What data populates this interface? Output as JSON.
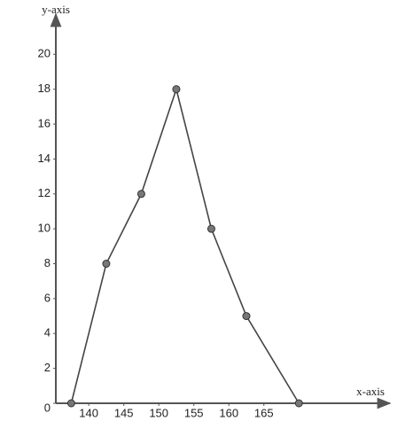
{
  "chart_data": {
    "type": "line",
    "x_label": "x-axis",
    "y_label": "y-axis",
    "x": [
      137.5,
      142.5,
      147.5,
      152.5,
      157.5,
      162.5,
      170
    ],
    "values": [
      0,
      8,
      12,
      18,
      10,
      5,
      0
    ],
    "color": "#444444",
    "xlim": [
      135.3,
      183
    ],
    "ylim": [
      0,
      22.3
    ],
    "xticks": [
      140,
      145,
      150,
      155,
      160,
      165
    ],
    "yticks": [
      0,
      2,
      4,
      6,
      8,
      10,
      12,
      14,
      16,
      18,
      20
    ],
    "grid": false
  }
}
